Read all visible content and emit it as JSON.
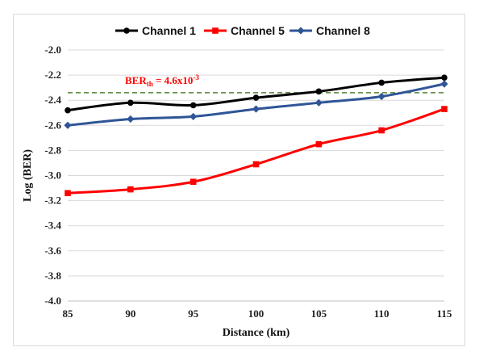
{
  "chart_data": {
    "type": "line",
    "xlabel": "Distance (km)",
    "ylabel": "Log (BER)",
    "x": [
      85,
      90,
      95,
      100,
      105,
      110,
      115
    ],
    "xlim": [
      85,
      115
    ],
    "ylim": [
      -4.0,
      -2.0
    ],
    "xticks": [
      "85",
      "90",
      "95",
      "100",
      "105",
      "110",
      "115"
    ],
    "yticks": [
      "-2.0",
      "-2.2",
      "-2.4",
      "-2.6",
      "-2.8",
      "-3.0",
      "-3.2",
      "-3.4",
      "-3.6",
      "-3.8",
      "-4.0"
    ],
    "grid": "horizontal",
    "legend_position": "top",
    "series": [
      {
        "name": "Channel 1",
        "color": "#000000",
        "marker": "circle",
        "values": [
          -2.48,
          -2.42,
          -2.44,
          -2.38,
          -2.33,
          -2.26,
          -2.22
        ]
      },
      {
        "name": "Channel 5",
        "color": "#ff0000",
        "marker": "square",
        "values": [
          -3.14,
          -3.11,
          -3.05,
          -2.91,
          -2.75,
          -2.64,
          -2.47
        ]
      },
      {
        "name": "Channel 8",
        "color": "#2f5597",
        "marker": "diamond",
        "values": [
          -2.6,
          -2.55,
          -2.53,
          -2.47,
          -2.42,
          -2.37,
          -2.27
        ]
      }
    ],
    "threshold": {
      "value": -2.34,
      "color": "#548235",
      "label_main": "BER",
      "label_sub": "th",
      "label_rest": " = 4.6x10",
      "label_sup": "-3"
    }
  }
}
